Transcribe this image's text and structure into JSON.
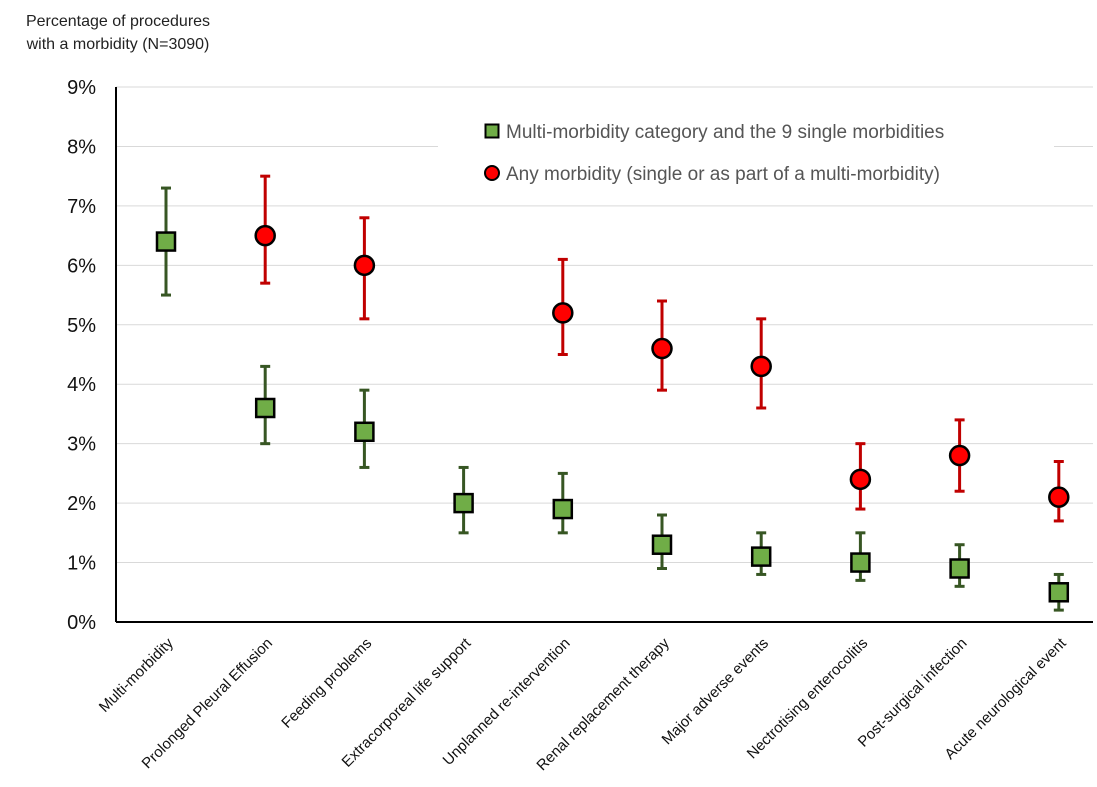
{
  "chart_data": {
    "type": "scatter",
    "ylabel": "Percentage of procedures with a morbidity (N=3090)",
    "ylabel_lines": [
      "Percentage of procedures",
      "with a morbidity (N=3090)"
    ],
    "ylim": [
      0,
      9
    ],
    "yticks": [
      "0%",
      "1%",
      "2%",
      "3%",
      "4%",
      "5%",
      "6%",
      "7%",
      "8%",
      "9%"
    ],
    "grid": true,
    "legend_position": "top-right",
    "categories": [
      "Multi-morbidity",
      "Prolonged Pleural Effusion",
      "Feeding problems",
      "Extracorporeal life support",
      "Unplanned re-intervention",
      "Renal replacement therapy",
      "Major adverse events",
      "Nectrotising enterocolitis",
      "Post-surgical infection",
      "Acute neurological event"
    ],
    "series": [
      {
        "name": "Multi-morbidity category and the 9 single morbidities",
        "marker": "square",
        "color": "#70ad47",
        "error_color": "#375623",
        "values": [
          6.4,
          3.6,
          3.2,
          2.0,
          1.9,
          1.3,
          1.1,
          1.0,
          0.9,
          0.5
        ],
        "lower": [
          5.5,
          3.0,
          2.6,
          1.5,
          1.5,
          0.9,
          0.8,
          0.7,
          0.6,
          0.2
        ],
        "upper": [
          7.3,
          4.3,
          3.9,
          2.6,
          2.5,
          1.8,
          1.5,
          1.5,
          1.3,
          0.8
        ]
      },
      {
        "name": "Any morbidity (single or as part of a multi-morbidity)",
        "marker": "circle",
        "color": "#ff0000",
        "error_color": "#c00000",
        "values": [
          null,
          6.5,
          6.0,
          null,
          5.2,
          4.6,
          4.3,
          2.4,
          2.8,
          2.1
        ],
        "lower": [
          null,
          5.7,
          5.1,
          null,
          4.5,
          3.9,
          3.6,
          1.9,
          2.2,
          1.7
        ],
        "upper": [
          null,
          7.5,
          6.8,
          null,
          6.1,
          5.4,
          5.1,
          3.0,
          3.4,
          2.7
        ]
      }
    ]
  }
}
